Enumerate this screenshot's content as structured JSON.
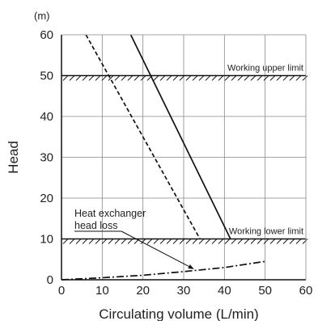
{
  "chart_data": {
    "type": "line",
    "xlabel": "Circulating volume (L/min)",
    "ylabel": "Head",
    "yunit": "(m)",
    "xlim": [
      0,
      60
    ],
    "ylim": [
      0,
      60
    ],
    "xticks": [
      0,
      10,
      20,
      30,
      40,
      50,
      60
    ],
    "yticks": [
      0,
      10,
      20,
      30,
      40,
      50,
      60
    ],
    "grid": true,
    "limits": [
      {
        "label": "Working upper limit",
        "value": 50
      },
      {
        "label": "Working lower limit",
        "value": 10
      }
    ],
    "series": [
      {
        "style": "solid",
        "x": [
          17,
          41.5
        ],
        "y": [
          60,
          10
        ]
      },
      {
        "style": "dashed",
        "x": [
          6,
          34
        ],
        "y": [
          60,
          10
        ]
      },
      {
        "name": "Heat exchanger head loss",
        "style": "dashdot",
        "x": [
          0,
          10,
          20,
          30,
          40,
          50
        ],
        "y": [
          0,
          0.5,
          1.1,
          2.0,
          3.0,
          4.5
        ]
      }
    ],
    "annotations": [
      {
        "text_lines": [
          "Heat exchanger",
          "head loss"
        ],
        "target": [
          32,
          2.1
        ]
      }
    ]
  },
  "colors": {
    "line": "#111111",
    "grid": "#888888"
  }
}
